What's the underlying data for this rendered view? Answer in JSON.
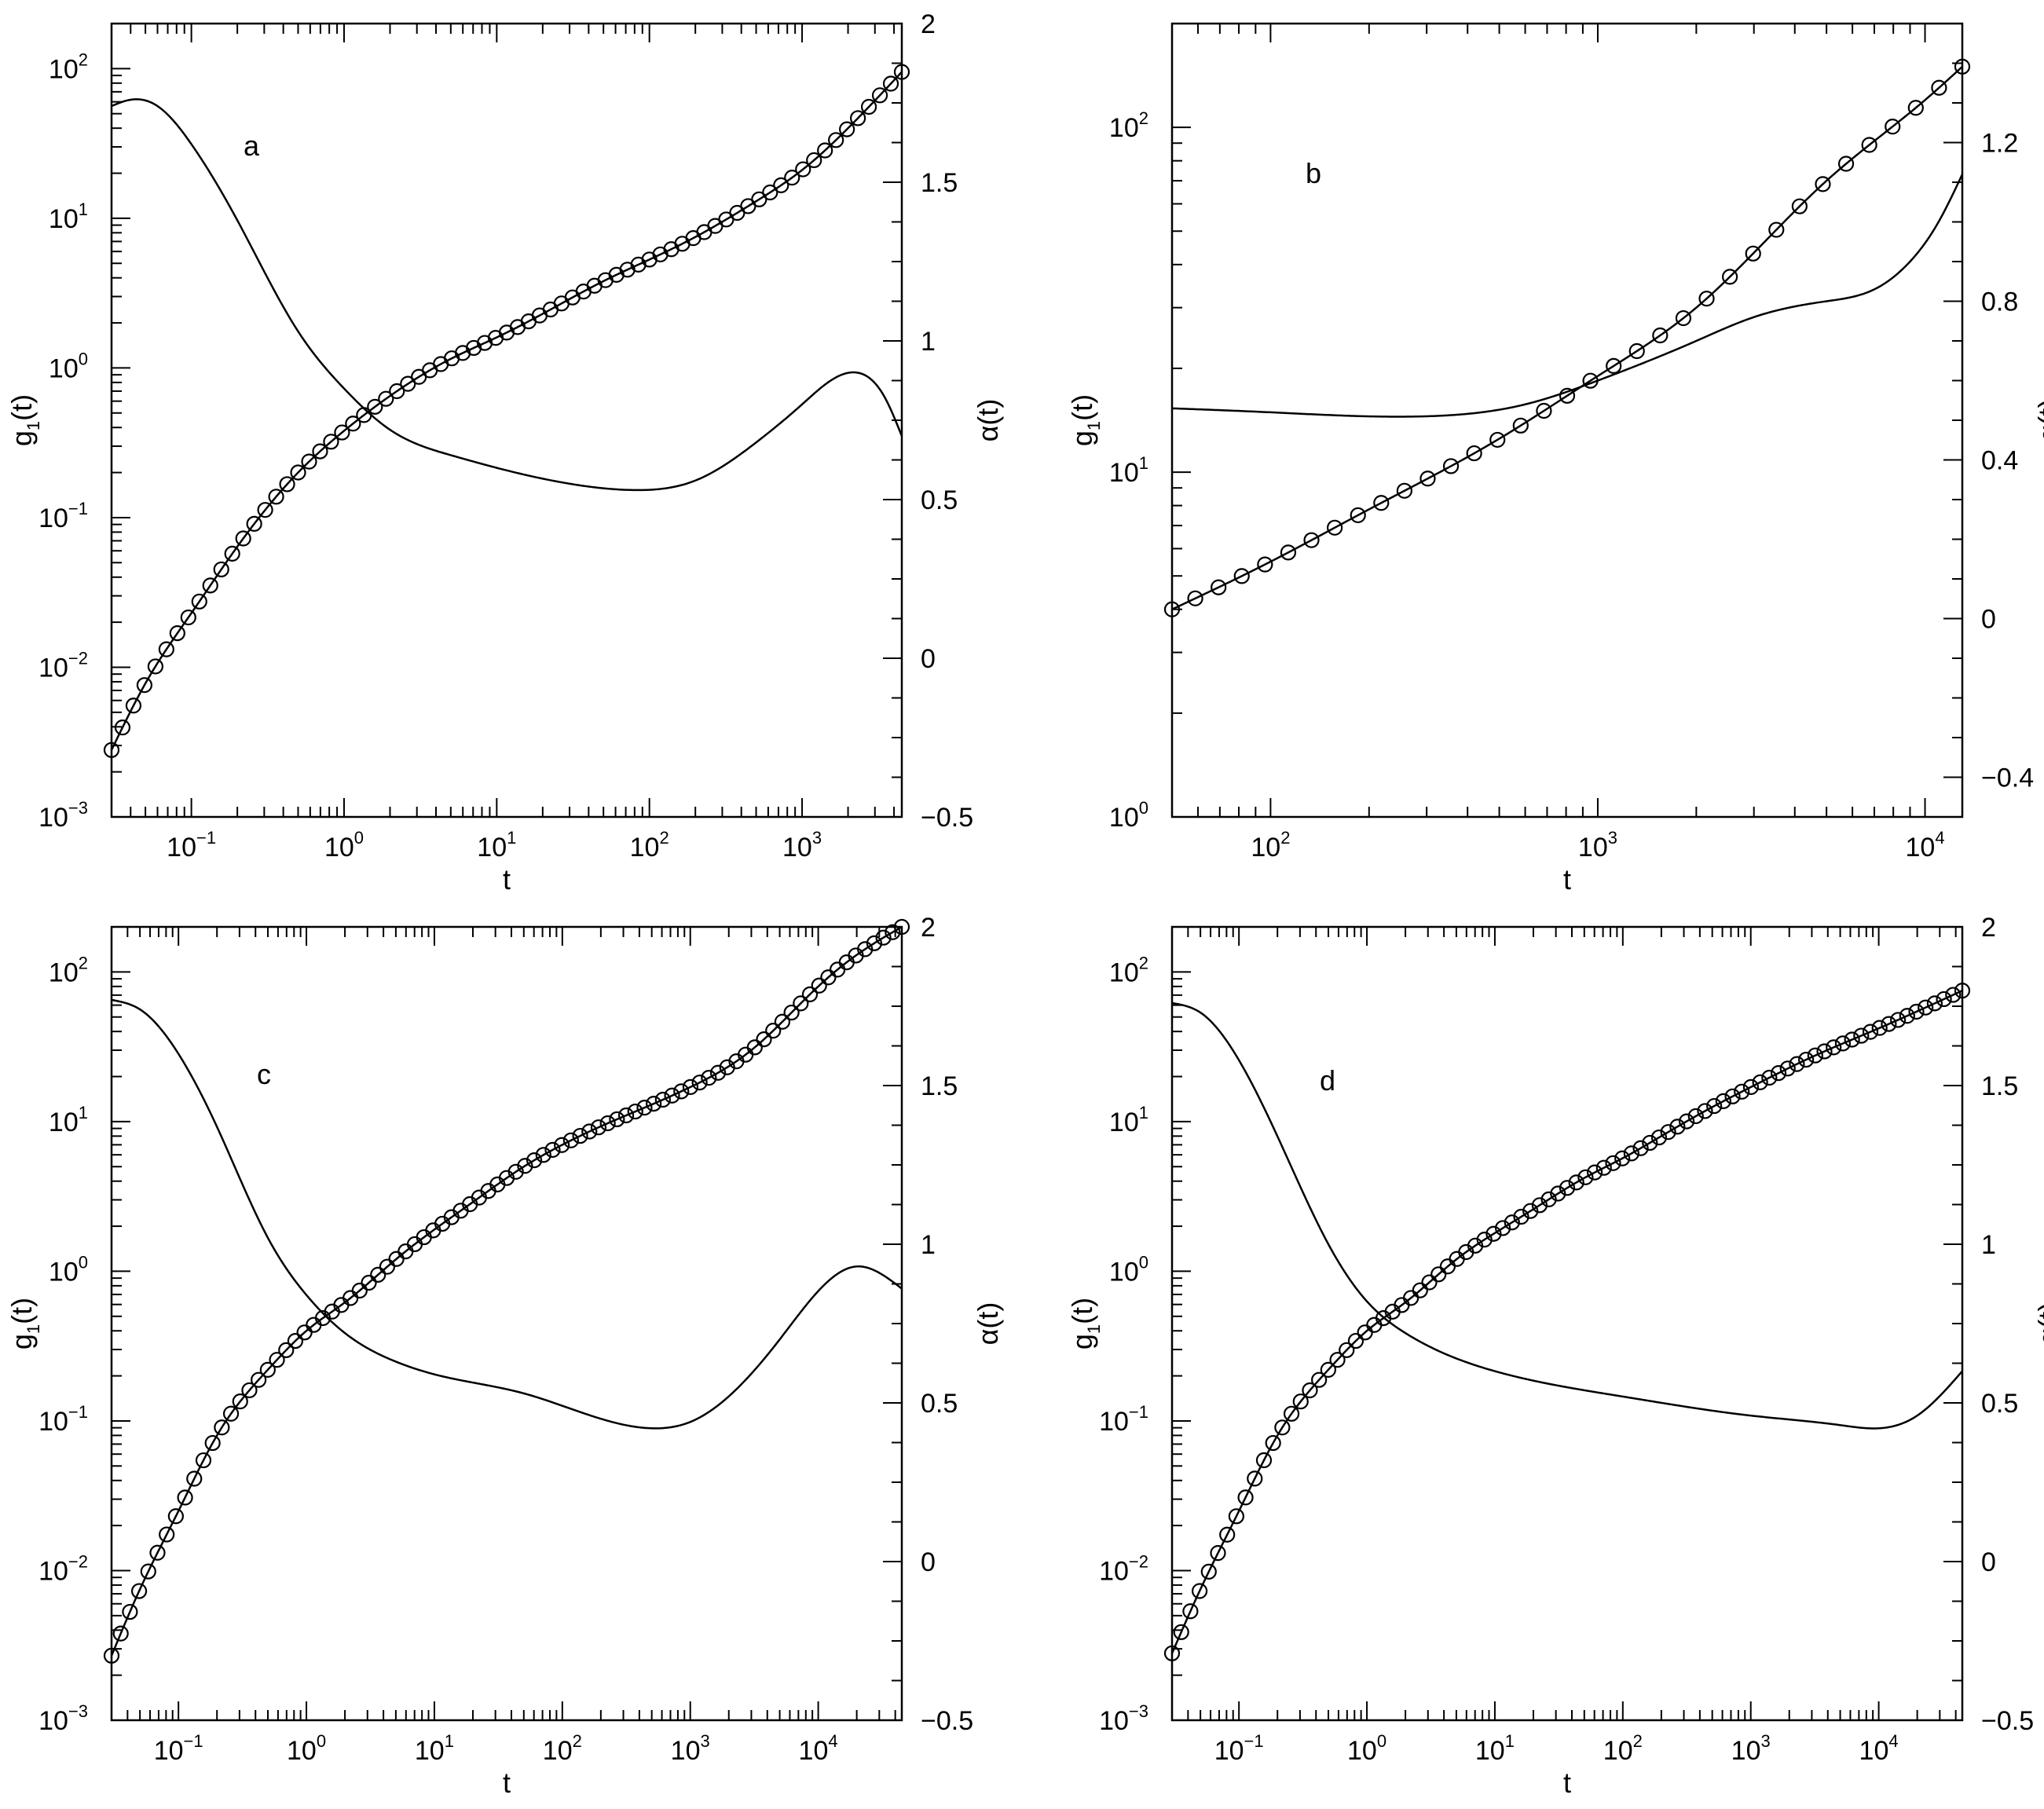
{
  "chart_data": [
    {
      "type": "line",
      "panel_label": "a",
      "xlabel": "t",
      "ylabel_left": "g1(t)",
      "ylabel_right": "α(t)",
      "x_scale": "log",
      "y_left_scale": "log",
      "y_right_scale": "linear",
      "xlim": [
        0.03,
        4500
      ],
      "y_left_lim": [
        0.001,
        200
      ],
      "y_right_lim": [
        -0.5,
        2
      ],
      "x_tick_labels": [
        "10^-1",
        "10^0",
        "10^1",
        "10^2",
        "10^3"
      ],
      "y_left_tick_labels": [
        "10^-3",
        "10^-2",
        "10^-1",
        "10^0",
        "10^1",
        "10^2"
      ],
      "y_right_tick_labels": [
        "-0.5",
        "0",
        "0.5",
        "1",
        "1.5",
        "2"
      ],
      "y_right_ticks": [
        -0.5,
        0,
        0.5,
        1,
        1.5,
        2
      ],
      "series": [
        {
          "axis": "left",
          "style": "line-with-circles",
          "t": [
            0.03,
            0.05,
            0.1,
            0.2,
            0.5,
            1,
            2,
            5,
            10,
            20,
            50,
            100,
            200,
            500,
            1000,
            2000,
            4500
          ],
          "y": [
            0.0028,
            0.0078,
            0.023,
            0.064,
            0.2,
            0.38,
            0.65,
            1.15,
            1.6,
            2.3,
            3.8,
            5.3,
            7.5,
            13,
            21,
            40,
            95
          ]
        },
        {
          "axis": "right",
          "style": "line",
          "t": [
            0.03,
            0.04,
            0.06,
            0.1,
            0.2,
            0.5,
            1,
            2,
            5,
            10,
            30,
            80,
            200,
            500,
            1000,
            2300,
            3500,
            4500
          ],
          "y": [
            1.74,
            1.76,
            1.74,
            1.62,
            1.38,
            1.03,
            0.85,
            0.72,
            0.64,
            0.6,
            0.55,
            0.53,
            0.56,
            0.68,
            0.8,
            0.9,
            0.82,
            0.7
          ]
        }
      ]
    },
    {
      "type": "line",
      "panel_label": "b",
      "xlabel": "t",
      "ylabel_left": "g1(t)",
      "ylabel_right": "α(t)",
      "x_scale": "log",
      "y_left_scale": "log",
      "y_right_scale": "linear",
      "xlim": [
        50,
        13000
      ],
      "y_left_lim": [
        1,
        200
      ],
      "y_right_lim": [
        -0.5,
        1.5
      ],
      "x_tick_labels": [
        "10^2",
        "10^3",
        "10^4"
      ],
      "y_left_tick_labels": [
        "10^0",
        "10^1",
        "10^2"
      ],
      "y_right_tick_labels": [
        "-0.4",
        "0",
        "0.4",
        "0.8",
        "1.2"
      ],
      "y_right_ticks": [
        -0.4,
        0,
        0.4,
        0.8,
        1.2
      ],
      "series": [
        {
          "axis": "left",
          "style": "line-with-circles",
          "t": [
            50,
            100,
            200,
            500,
            1000,
            2000,
            5000,
            10000,
            13000
          ],
          "y": [
            4,
            5.5,
            7.8,
            12.5,
            19,
            30,
            70,
            120,
            150
          ]
        },
        {
          "axis": "right",
          "style": "line",
          "t": [
            50,
            100,
            300,
            600,
            1000,
            2000,
            3000,
            5000,
            7000,
            9000,
            11000,
            13000
          ],
          "y": [
            0.53,
            0.52,
            0.51,
            0.54,
            0.6,
            0.7,
            0.76,
            0.8,
            0.83,
            0.9,
            1.0,
            1.12
          ]
        }
      ]
    },
    {
      "type": "line",
      "panel_label": "c",
      "xlabel": "t",
      "ylabel_left": "g1(t)",
      "ylabel_right": "α(t)",
      "x_scale": "log",
      "y_left_scale": "log",
      "y_right_scale": "linear",
      "xlim": [
        0.03,
        45000
      ],
      "y_left_lim": [
        0.001,
        200
      ],
      "y_right_lim": [
        -0.5,
        2
      ],
      "x_tick_labels": [
        "10^-1",
        "10^0",
        "10^1",
        "10^2",
        "10^3",
        "10^4"
      ],
      "y_left_tick_labels": [
        "10^-3",
        "10^-2",
        "10^-1",
        "10^0",
        "10^1",
        "10^2"
      ],
      "y_right_tick_labels": [
        "-0.5",
        "0",
        "0.5",
        "1",
        "1.5",
        "2"
      ],
      "y_right_ticks": [
        -0.5,
        0,
        0.5,
        1,
        1.5,
        2
      ],
      "series": [
        {
          "axis": "left",
          "style": "line-with-circles",
          "t": [
            0.03,
            0.05,
            0.1,
            0.2,
            0.5,
            1,
            2,
            5,
            10,
            20,
            50,
            100,
            200,
            500,
            1000,
            3000,
            10000,
            20000,
            45000
          ],
          "y": [
            0.0027,
            0.0075,
            0.025,
            0.08,
            0.22,
            0.4,
            0.62,
            1.2,
            1.9,
            2.9,
            5,
            7,
            9.3,
            13,
            17,
            30,
            80,
            130,
            200
          ]
        },
        {
          "axis": "right",
          "style": "line",
          "t": [
            0.03,
            0.05,
            0.1,
            0.2,
            0.5,
            1,
            2,
            5,
            10,
            50,
            200,
            500,
            1000,
            5000,
            20000,
            45000
          ],
          "y": [
            1.77,
            1.74,
            1.6,
            1.37,
            1.02,
            0.84,
            0.72,
            0.63,
            0.59,
            0.53,
            0.45,
            0.42,
            0.44,
            0.7,
            0.93,
            0.86
          ]
        }
      ]
    },
    {
      "type": "line",
      "panel_label": "d",
      "xlabel": "t",
      "ylabel_left": "g1(t)",
      "ylabel_right": "α(t)",
      "x_scale": "log",
      "y_left_scale": "log",
      "y_right_scale": "linear",
      "xlim": [
        0.03,
        45000
      ],
      "y_left_lim": [
        0.001,
        200
      ],
      "y_right_lim": [
        -0.5,
        2
      ],
      "x_tick_labels": [
        "10^-1",
        "10^0",
        "10^1",
        "10^2",
        "10^3",
        "10^4"
      ],
      "y_left_tick_labels": [
        "10^-3",
        "10^-2",
        "10^-1",
        "10^0",
        "10^1",
        "10^2"
      ],
      "y_right_tick_labels": [
        "-0.5",
        "0",
        "0.5",
        "1",
        "1.5",
        "2"
      ],
      "y_right_ticks": [
        -0.5,
        0,
        0.5,
        1,
        1.5,
        2
      ],
      "series": [
        {
          "axis": "left",
          "style": "line-with-circles",
          "t": [
            0.03,
            0.05,
            0.1,
            0.2,
            0.5,
            1,
            2,
            5,
            10,
            20,
            50,
            100,
            200,
            500,
            1000,
            3000,
            10000,
            45000
          ],
          "y": [
            0.0028,
            0.0075,
            0.025,
            0.08,
            0.22,
            0.4,
            0.62,
            1.2,
            1.8,
            2.6,
            4.2,
            5.7,
            8,
            12.5,
            17,
            27,
            42,
            75
          ]
        },
        {
          "axis": "right",
          "style": "line",
          "t": [
            0.03,
            0.05,
            0.1,
            0.2,
            0.5,
            1,
            2,
            5,
            10,
            100,
            1000,
            5000,
            10000,
            20000,
            45000
          ],
          "y": [
            1.76,
            1.73,
            1.58,
            1.34,
            1.0,
            0.82,
            0.72,
            0.64,
            0.6,
            0.52,
            0.46,
            0.43,
            0.42,
            0.46,
            0.6
          ]
        }
      ]
    }
  ]
}
